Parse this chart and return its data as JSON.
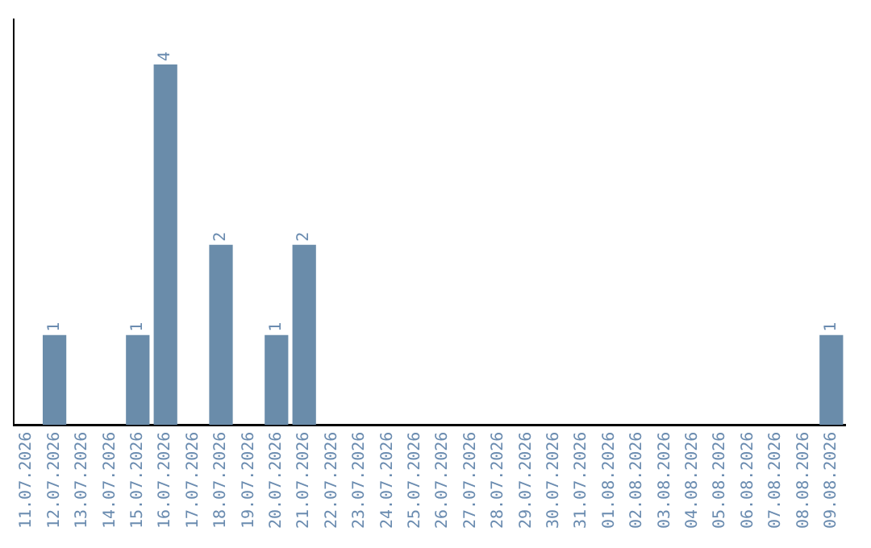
{
  "chart_data": {
    "type": "bar",
    "relative": false,
    "categories": [
      "11.07.2026",
      "12.07.2026",
      "13.07.2026",
      "14.07.2026",
      "15.07.2026",
      "16.07.2026",
      "17.07.2026",
      "18.07.2026",
      "19.07.2026",
      "20.07.2026",
      "21.07.2026",
      "22.07.2026",
      "23.07.2026",
      "24.07.2026",
      "25.07.2026",
      "26.07.2026",
      "27.07.2026",
      "28.07.2026",
      "29.07.2026",
      "30.07.2026",
      "31.07.2026",
      "01.08.2026",
      "02.08.2026",
      "03.08.2026",
      "04.08.2026",
      "05.08.2026",
      "06.08.2026",
      "07.08.2026",
      "08.08.2026",
      "09.08.2026"
    ],
    "values": [
      0,
      1,
      0,
      0,
      1,
      4,
      0,
      2,
      0,
      1,
      2,
      0,
      0,
      0,
      0,
      0,
      0,
      0,
      0,
      0,
      0,
      0,
      0,
      0,
      0,
      0,
      0,
      0,
      0,
      1
    ],
    "value_labels": [
      null,
      "1",
      null,
      null,
      "1",
      "4",
      null,
      "2",
      null,
      "1",
      "2",
      null,
      null,
      null,
      null,
      null,
      null,
      null,
      null,
      null,
      null,
      null,
      null,
      null,
      null,
      null,
      null,
      null,
      null,
      "1"
    ],
    "color": "#6a8caa",
    "grid": false,
    "legend": false
  }
}
